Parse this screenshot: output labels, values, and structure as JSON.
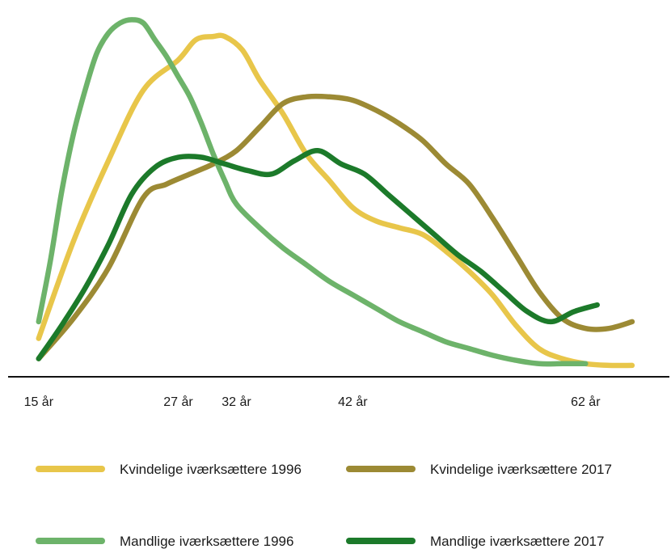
{
  "chart_data": {
    "type": "line",
    "xlabel": "",
    "ylabel": "",
    "x_ticks": [
      {
        "x": 15,
        "label": "15 år"
      },
      {
        "x": 27,
        "label": "27 år"
      },
      {
        "x": 32,
        "label": "32 år"
      },
      {
        "x": 42,
        "label": "42 år"
      },
      {
        "x": 62,
        "label": "62 år"
      }
    ],
    "xlim": [
      14.6,
      68.3
    ],
    "ylim": [
      0,
      100
    ],
    "y_axis_visible": false,
    "grid": false,
    "legend_position": "bottom",
    "series": [
      {
        "name": "Kvindelige iværksættere 1996",
        "color": "#E8C64A",
        "points": [
          [
            15,
            9
          ],
          [
            18,
            38
          ],
          [
            21,
            62
          ],
          [
            24,
            83
          ],
          [
            27,
            92
          ],
          [
            28.5,
            98
          ],
          [
            30,
            99
          ],
          [
            31,
            99
          ],
          [
            32.5,
            95
          ],
          [
            34,
            86
          ],
          [
            36,
            76
          ],
          [
            38,
            64
          ],
          [
            40,
            56
          ],
          [
            42,
            48
          ],
          [
            44,
            44
          ],
          [
            46,
            42
          ],
          [
            48,
            40
          ],
          [
            50,
            35
          ],
          [
            52,
            29
          ],
          [
            54,
            22
          ],
          [
            56,
            13
          ],
          [
            58,
            6
          ],
          [
            60,
            3
          ],
          [
            62,
            1.5
          ],
          [
            64,
            1
          ],
          [
            66,
            1
          ]
        ]
      },
      {
        "name": "Kvindelige iværksættere 2017",
        "color": "#9C8A34",
        "points": [
          [
            15,
            3
          ],
          [
            18,
            15
          ],
          [
            21,
            30
          ],
          [
            24,
            51
          ],
          [
            26,
            55
          ],
          [
            28,
            58
          ],
          [
            30,
            61
          ],
          [
            32,
            65
          ],
          [
            34,
            72
          ],
          [
            36,
            79
          ],
          [
            38,
            81
          ],
          [
            40,
            81
          ],
          [
            42,
            80
          ],
          [
            44,
            77
          ],
          [
            46,
            73
          ],
          [
            48,
            68
          ],
          [
            50,
            61
          ],
          [
            52,
            55
          ],
          [
            54,
            45
          ],
          [
            56,
            34
          ],
          [
            58,
            23
          ],
          [
            60,
            15
          ],
          [
            62,
            12
          ],
          [
            64,
            12
          ],
          [
            66,
            14
          ]
        ]
      },
      {
        "name": "Mandlige iværksættere 1996",
        "color": "#6DB36A",
        "points": [
          [
            15,
            14
          ],
          [
            16,
            32
          ],
          [
            17,
            53
          ],
          [
            18,
            70
          ],
          [
            19,
            83
          ],
          [
            20,
            94
          ],
          [
            21,
            100
          ],
          [
            22,
            103
          ],
          [
            23,
            104
          ],
          [
            24,
            103
          ],
          [
            25,
            98
          ],
          [
            26,
            93
          ],
          [
            27,
            87
          ],
          [
            28,
            81
          ],
          [
            29,
            73
          ],
          [
            30,
            64
          ],
          [
            31,
            56
          ],
          [
            32,
            49
          ],
          [
            34,
            42
          ],
          [
            36,
            36
          ],
          [
            38,
            31
          ],
          [
            40,
            26
          ],
          [
            42,
            22
          ],
          [
            44,
            18
          ],
          [
            46,
            14
          ],
          [
            48,
            11
          ],
          [
            50,
            8
          ],
          [
            52,
            6
          ],
          [
            54,
            4
          ],
          [
            56,
            2.5
          ],
          [
            58,
            1.5
          ],
          [
            60,
            1.5
          ],
          [
            62,
            1.5
          ]
        ]
      },
      {
        "name": "Mandlige iværksættere 2017",
        "color": "#1C7A2A",
        "points": [
          [
            15,
            3
          ],
          [
            17,
            13
          ],
          [
            19,
            24
          ],
          [
            21,
            37
          ],
          [
            23,
            52
          ],
          [
            25,
            60
          ],
          [
            27,
            63
          ],
          [
            29,
            63
          ],
          [
            31,
            61
          ],
          [
            33,
            59
          ],
          [
            35,
            58
          ],
          [
            37,
            62
          ],
          [
            39,
            65
          ],
          [
            41,
            61
          ],
          [
            43,
            58
          ],
          [
            45,
            52
          ],
          [
            47,
            46
          ],
          [
            49,
            40
          ],
          [
            51,
            34
          ],
          [
            53,
            29
          ],
          [
            55,
            23
          ],
          [
            57,
            17
          ],
          [
            59,
            14
          ],
          [
            61,
            17
          ],
          [
            63,
            19
          ]
        ]
      }
    ]
  }
}
